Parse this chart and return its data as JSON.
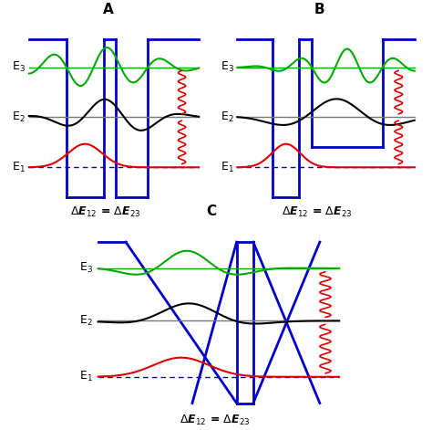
{
  "title_A": "A",
  "title_B": "B",
  "title_C": "C",
  "equation": "ΔE$_\\mathbf{12}$ = ΔE$_\\mathbf{23}$",
  "blue": "#0000cc",
  "green": "#00aa00",
  "black": "#000000",
  "red": "#dd0000",
  "gray": "#777777",
  "label_fs": 9,
  "title_fs": 11,
  "eq_fs": 9
}
